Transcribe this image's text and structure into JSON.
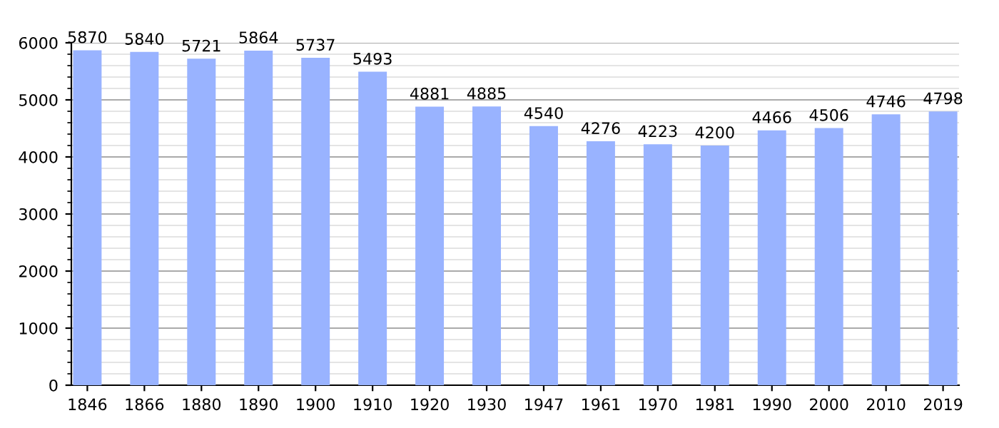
{
  "chart_data": {
    "type": "bar",
    "categories": [
      "1846",
      "1866",
      "1880",
      "1890",
      "1900",
      "1910",
      "1920",
      "1930",
      "1947",
      "1961",
      "1970",
      "1981",
      "1990",
      "2000",
      "2010",
      "2019"
    ],
    "values": [
      5870,
      5840,
      5721,
      5864,
      5737,
      5493,
      4881,
      4885,
      4540,
      4276,
      4223,
      4200,
      4466,
      4506,
      4746,
      4798
    ],
    "color": "#99b3ff",
    "ylim": [
      0,
      6000
    ],
    "yticks": [
      0,
      1000,
      2000,
      3000,
      4000,
      5000,
      6000
    ],
    "grid": "y",
    "data_labels": true
  }
}
